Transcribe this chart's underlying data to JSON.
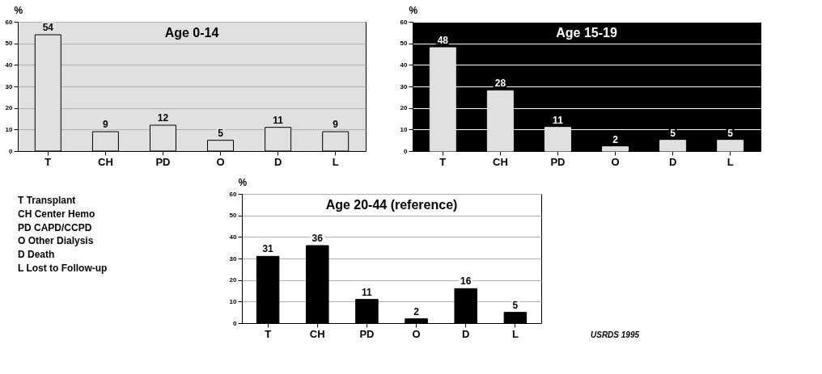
{
  "chart_data": [
    {
      "type": "bar",
      "title": "Age 0-14",
      "ylabel": "%",
      "categories": [
        "T",
        "CH",
        "PD",
        "O",
        "D",
        "L"
      ],
      "values": [
        54,
        9,
        12,
        5,
        11,
        9
      ],
      "color": "#e0e0e0",
      "ylim": [
        0,
        60
      ],
      "yticks": [
        0,
        10,
        20,
        30,
        40,
        50,
        60
      ],
      "grid": "y",
      "data_labels": true
    },
    {
      "type": "bar",
      "title": "Age 15-19",
      "ylabel": "%",
      "categories": [
        "T",
        "CH",
        "PD",
        "O",
        "D",
        "L"
      ],
      "values": [
        48,
        28,
        11,
        2,
        5,
        5
      ],
      "color": "#e0e0e0",
      "ylim": [
        0,
        60
      ],
      "yticks": [
        0,
        10,
        20,
        30,
        40,
        50,
        60
      ],
      "grid": "y",
      "data_labels": true
    },
    {
      "type": "bar",
      "title": "Age 20-44 (reference)",
      "ylabel": "%",
      "categories": [
        "T",
        "CH",
        "PD",
        "O",
        "D",
        "L"
      ],
      "values": [
        31,
        36,
        11,
        2,
        16,
        5
      ],
      "color": "#000000",
      "ylim": [
        0,
        60
      ],
      "yticks": [
        0,
        10,
        20,
        30,
        40,
        50,
        60
      ],
      "grid": "y",
      "data_labels": true,
      "annotations": [
        "T      Transplant",
        "CH    Center Hemo",
        "PD    CAPD/CCPD",
        "O      Other Dialysis",
        "D      Death",
        "L       Lost to Follow-up",
        "USRDS 1995"
      ]
    }
  ]
}
